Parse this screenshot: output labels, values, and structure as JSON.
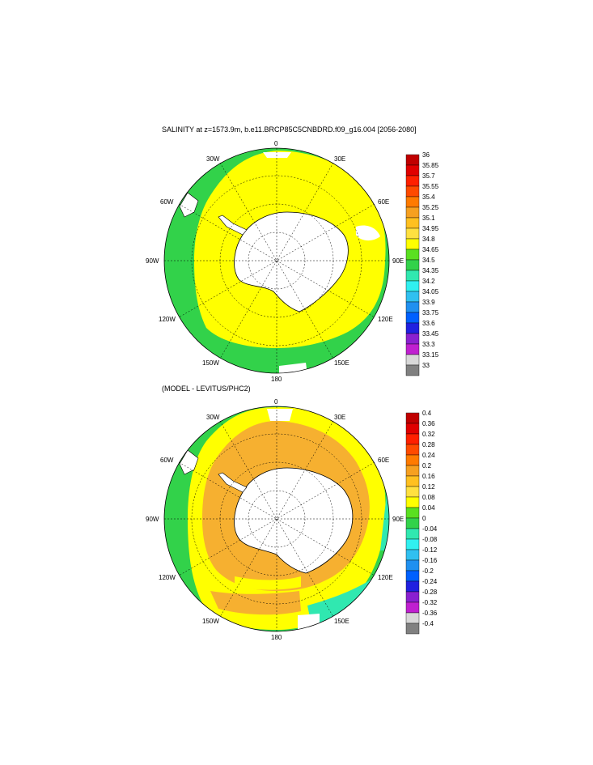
{
  "top": {
    "title": "SALINITY at z=1573.9m, b.e11.BRCP85C5CNBDRD.f09_g16.004 [2056-2080]",
    "colorbar_labels": [
      "36",
      "35.85",
      "35.7",
      "35.55",
      "35.4",
      "35.25",
      "35.1",
      "34.95",
      "34.8",
      "34.65",
      "34.5",
      "34.35",
      "34.2",
      "34.05",
      "33.9",
      "33.75",
      "33.6",
      "33.45",
      "33.3",
      "33.15",
      "33"
    ],
    "colorbar_colors": [
      "#c00000",
      "#e00000",
      "#ff2000",
      "#ff4a00",
      "#ff7a00",
      "#f6a020",
      "#ffc020",
      "#ffe040",
      "#ffff00",
      "#5ae020",
      "#32d24a",
      "#30e8b0",
      "#30f0f0",
      "#30c0f0",
      "#2090f0",
      "#0060ff",
      "#2020e0",
      "#8a20d0",
      "#c020d0",
      "#d8d8d8",
      "#808080"
    ]
  },
  "bottom": {
    "title": "(MODEL - LEVITUS/PHC2)",
    "colorbar_labels": [
      "0.4",
      "0.36",
      "0.32",
      "0.28",
      "0.24",
      "0.2",
      "0.16",
      "0.12",
      "0.08",
      "0.04",
      "0",
      "-0.04",
      "-0.08",
      "-0.12",
      "-0.16",
      "-0.2",
      "-0.24",
      "-0.28",
      "-0.32",
      "-0.36",
      "-0.4"
    ],
    "colorbar_colors": [
      "#c00000",
      "#e00000",
      "#ff2000",
      "#ff4a00",
      "#ff7a00",
      "#f6a020",
      "#ffc020",
      "#ffe040",
      "#ffff00",
      "#5ae020",
      "#32d24a",
      "#30e8b0",
      "#30f0f0",
      "#30c0f0",
      "#2090f0",
      "#0060ff",
      "#2020e0",
      "#8a20d0",
      "#c020d0",
      "#d8d8d8",
      "#808080"
    ]
  },
  "map_labels": {
    "lon_0": "0",
    "lon_30e": "30E",
    "lon_60e": "60E",
    "lon_90e": "90E",
    "lon_120e": "120E",
    "lon_150e": "150E",
    "lon_180": "180",
    "lon_150w": "150W",
    "lon_120w": "120W",
    "lon_90w": "90W",
    "lon_60w": "60W",
    "lon_30w": "30W"
  },
  "colors": {
    "land": "#ffffff",
    "top_ocean": "#ffff00",
    "bottom_ocean": "#f6b030",
    "outline": "#000000"
  }
}
